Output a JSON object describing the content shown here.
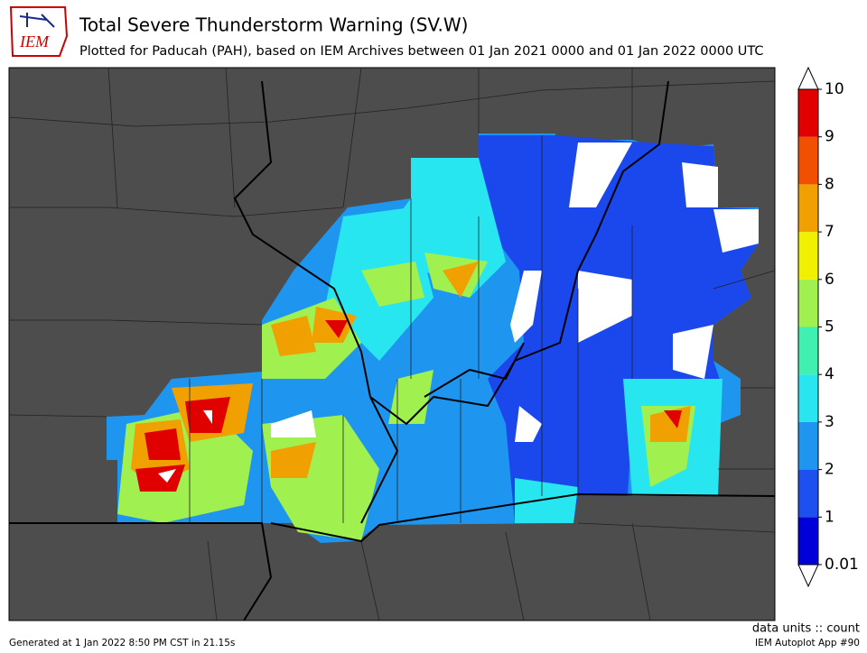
{
  "header": {
    "logo": "IEM",
    "title": "Total Severe Thunderstorm Warning (SV.W)",
    "subtitle": "Plotted for Paducah (PAH), based on IEM Archives  between 01 Jan 2021 0000 and 01 Jan 2022 0000 UTC"
  },
  "colorbar": {
    "ticks": [
      0.01,
      1,
      2,
      3,
      4,
      5,
      6,
      7,
      8,
      9,
      10
    ],
    "colors": [
      "#0000d8",
      "#1e50f0",
      "#1e96f0",
      "#28e6f0",
      "#40f0b0",
      "#a0f050",
      "#f0f000",
      "#f0a000",
      "#f05000",
      "#e00000"
    ]
  },
  "footer": {
    "units": "data units :: count",
    "generated": "Generated at 1 Jan 2022 8:50 PM CST in 21.15s",
    "app": "IEM Autoplot App #90"
  }
}
